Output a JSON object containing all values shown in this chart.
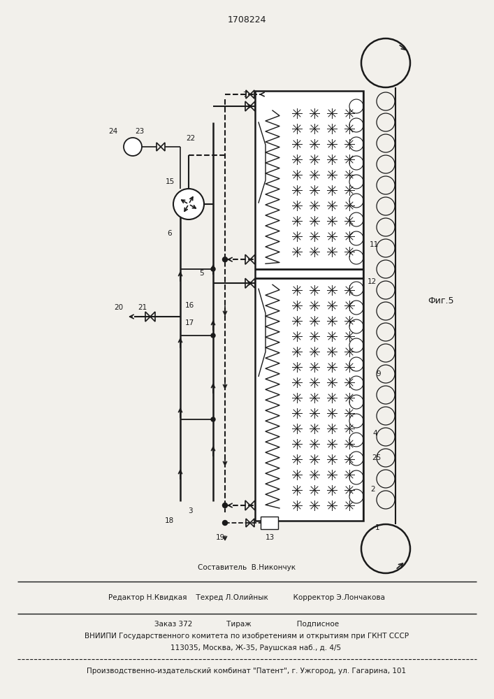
{
  "patent_number": "1708224",
  "fig_label": "Фиг.5",
  "bg_color": "#f2f0eb",
  "line_color": "#1a1a1a",
  "footer_lines": [
    "Составитель  В.Никончук",
    "Редактор Н.Квидкая    Техред Л.Олийнык           Корректор Э.Лончакова",
    "Заказ 372               Тираж                    Подписное",
    "ВНИИПИ Государственного комитета по изобретениям и открытиям при ГКНТ СССР",
    "        113035, Москва, Ж-35, Раушская наб., д. 4/5",
    "Производственно-издательский комбинат \"Патент\", г. Ужгород, ул. Гагарина, 101"
  ]
}
